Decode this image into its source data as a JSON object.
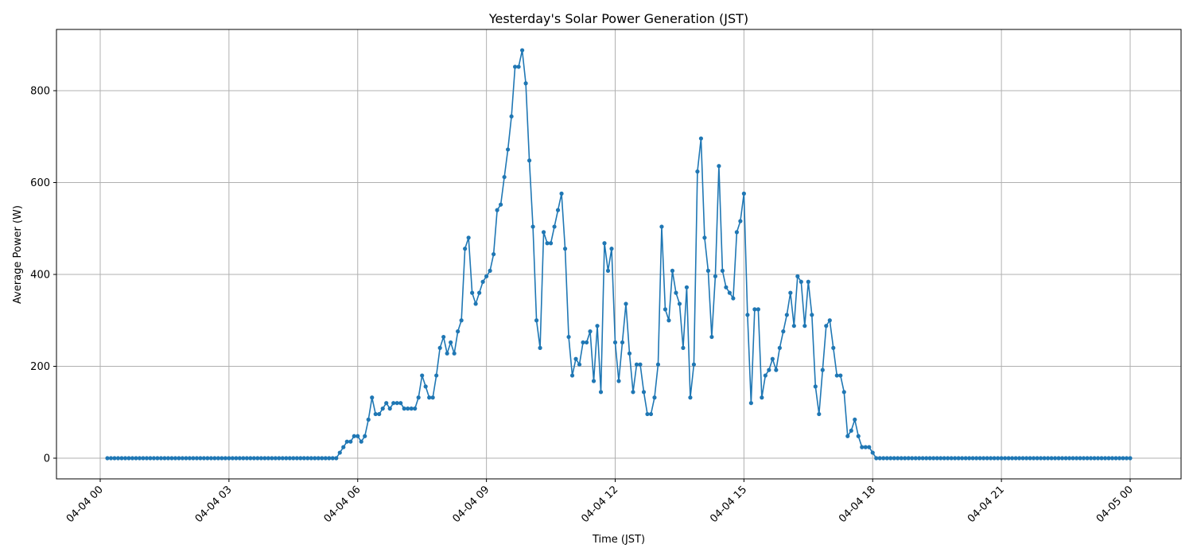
{
  "chart_data": {
    "type": "line",
    "title": "Yesterday's Solar Power Generation (JST)",
    "xlabel": "Time (JST)",
    "ylabel": "Average Power (W)",
    "x_start": "04-04 00:10",
    "x_interval_minutes": 5,
    "x_tick_labels": [
      "04-04 00",
      "04-04 03",
      "04-04 06",
      "04-04 09",
      "04-04 12",
      "04-04 15",
      "04-04 18",
      "04-04 21",
      "04-05 00"
    ],
    "y_ticks": [
      0,
      200,
      400,
      600,
      800
    ],
    "ylim": [
      -45,
      930
    ],
    "grid": true,
    "marker": "circle",
    "color": "#1f77b4",
    "values": [
      0,
      0,
      0,
      0,
      0,
      0,
      0,
      0,
      0,
      0,
      0,
      0,
      0,
      0,
      0,
      0,
      0,
      0,
      0,
      0,
      0,
      0,
      0,
      0,
      0,
      0,
      0,
      0,
      0,
      0,
      0,
      0,
      0,
      0,
      0,
      0,
      0,
      0,
      0,
      0,
      0,
      0,
      0,
      0,
      0,
      0,
      0,
      0,
      0,
      0,
      0,
      0,
      0,
      0,
      0,
      0,
      0,
      0,
      0,
      0,
      0,
      0,
      0,
      0,
      0,
      12,
      24,
      36,
      36,
      48,
      48,
      36,
      48,
      84,
      132,
      96,
      96,
      108,
      120,
      108,
      120,
      120,
      120,
      108,
      108,
      108,
      108,
      132,
      180,
      156,
      132,
      132,
      180,
      240,
      264,
      228,
      252,
      228,
      276,
      300,
      456,
      480,
      360,
      336,
      360,
      384,
      396,
      408,
      444,
      540,
      552,
      612,
      672,
      744,
      852,
      852,
      888,
      816,
      648,
      504,
      300,
      240,
      492,
      468,
      468,
      504,
      540,
      576,
      456,
      264,
      180,
      216,
      204,
      252,
      252,
      276,
      168,
      288,
      144,
      468,
      408,
      456,
      252,
      168,
      252,
      336,
      228,
      144,
      204,
      204,
      144,
      96,
      96,
      132,
      204,
      504,
      324,
      300,
      408,
      360,
      336,
      240,
      372,
      132,
      204,
      624,
      696,
      480,
      408,
      264,
      396,
      636,
      408,
      372,
      360,
      348,
      492,
      516,
      576,
      312,
      120,
      324,
      324,
      132,
      180,
      192,
      216,
      192,
      240,
      276,
      312,
      360,
      288,
      396,
      384,
      288,
      384,
      312,
      156,
      96,
      192,
      288,
      300,
      240,
      180,
      180,
      144,
      48,
      60,
      84,
      48,
      24,
      24,
      24,
      12,
      0,
      0,
      0,
      0,
      0,
      0,
      0,
      0,
      0,
      0,
      0,
      0,
      0,
      0,
      0,
      0,
      0,
      0,
      0,
      0,
      0,
      0,
      0,
      0,
      0,
      0,
      0,
      0,
      0,
      0,
      0,
      0,
      0,
      0,
      0,
      0,
      0,
      0,
      0,
      0,
      0,
      0,
      0,
      0,
      0,
      0,
      0,
      0,
      0,
      0,
      0,
      0,
      0,
      0,
      0,
      0,
      0,
      0,
      0,
      0,
      0,
      0,
      0,
      0,
      0,
      0,
      0,
      0,
      0,
      0,
      0,
      0
    ]
  }
}
